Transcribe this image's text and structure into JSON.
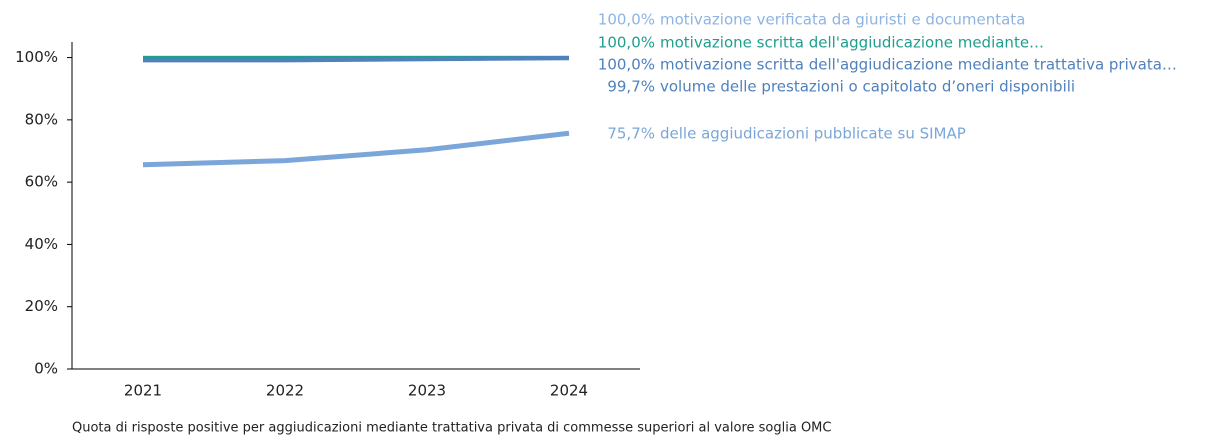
{
  "chart_data": {
    "type": "line",
    "caption": "Quota di risposte positive per aggiudicazioni mediante trattativa privata di commesse superiori al valore soglia OMC",
    "categories": [
      "2021",
      "2022",
      "2023",
      "2024"
    ],
    "series": [
      {
        "name": "motivazione verificata da giuristi e documentata",
        "color": "#8db4e2",
        "values": [
          100,
          100,
          100,
          100
        ],
        "value_labels": [
          null,
          null,
          null,
          "100,0%"
        ]
      },
      {
        "name": "motivazione scritta dell'aggiudicazione mediante…",
        "color": "#1f9e8e",
        "values": [
          100,
          100,
          100,
          100
        ],
        "value_labels": [
          null,
          null,
          null,
          "100,0%"
        ]
      },
      {
        "name": "motivazione scritta dell'aggiudicazione mediante trattativa privata…",
        "color": "#4f81bd",
        "values": [
          99.2,
          99.2,
          99.6,
          100
        ],
        "value_labels": [
          null,
          null,
          null,
          "100,0%"
        ]
      },
      {
        "name": "volume delle prestazioni o capitolato d’oneri disponibili",
        "color": "#4f81bd",
        "values": [
          99,
          99,
          99.4,
          99.7
        ],
        "value_labels": [
          null,
          null,
          null,
          "99,7%"
        ]
      },
      {
        "name": "delle aggiudicazioni pubblicate su SIMAP",
        "color": "#7aa6d9",
        "values": [
          65.6,
          66.9,
          70.4,
          75.7
        ],
        "value_labels": [
          null,
          null,
          null,
          "75,7%"
        ]
      }
    ],
    "ylim": [
      0,
      105
    ],
    "yticks": [
      {
        "value": 0,
        "label": "0%"
      },
      {
        "value": 20,
        "label": "20%"
      },
      {
        "value": 40,
        "label": "40%"
      },
      {
        "value": 60,
        "label": "60%"
      },
      {
        "value": 80,
        "label": "80%"
      },
      {
        "value": 100,
        "label": "100%"
      }
    ]
  }
}
